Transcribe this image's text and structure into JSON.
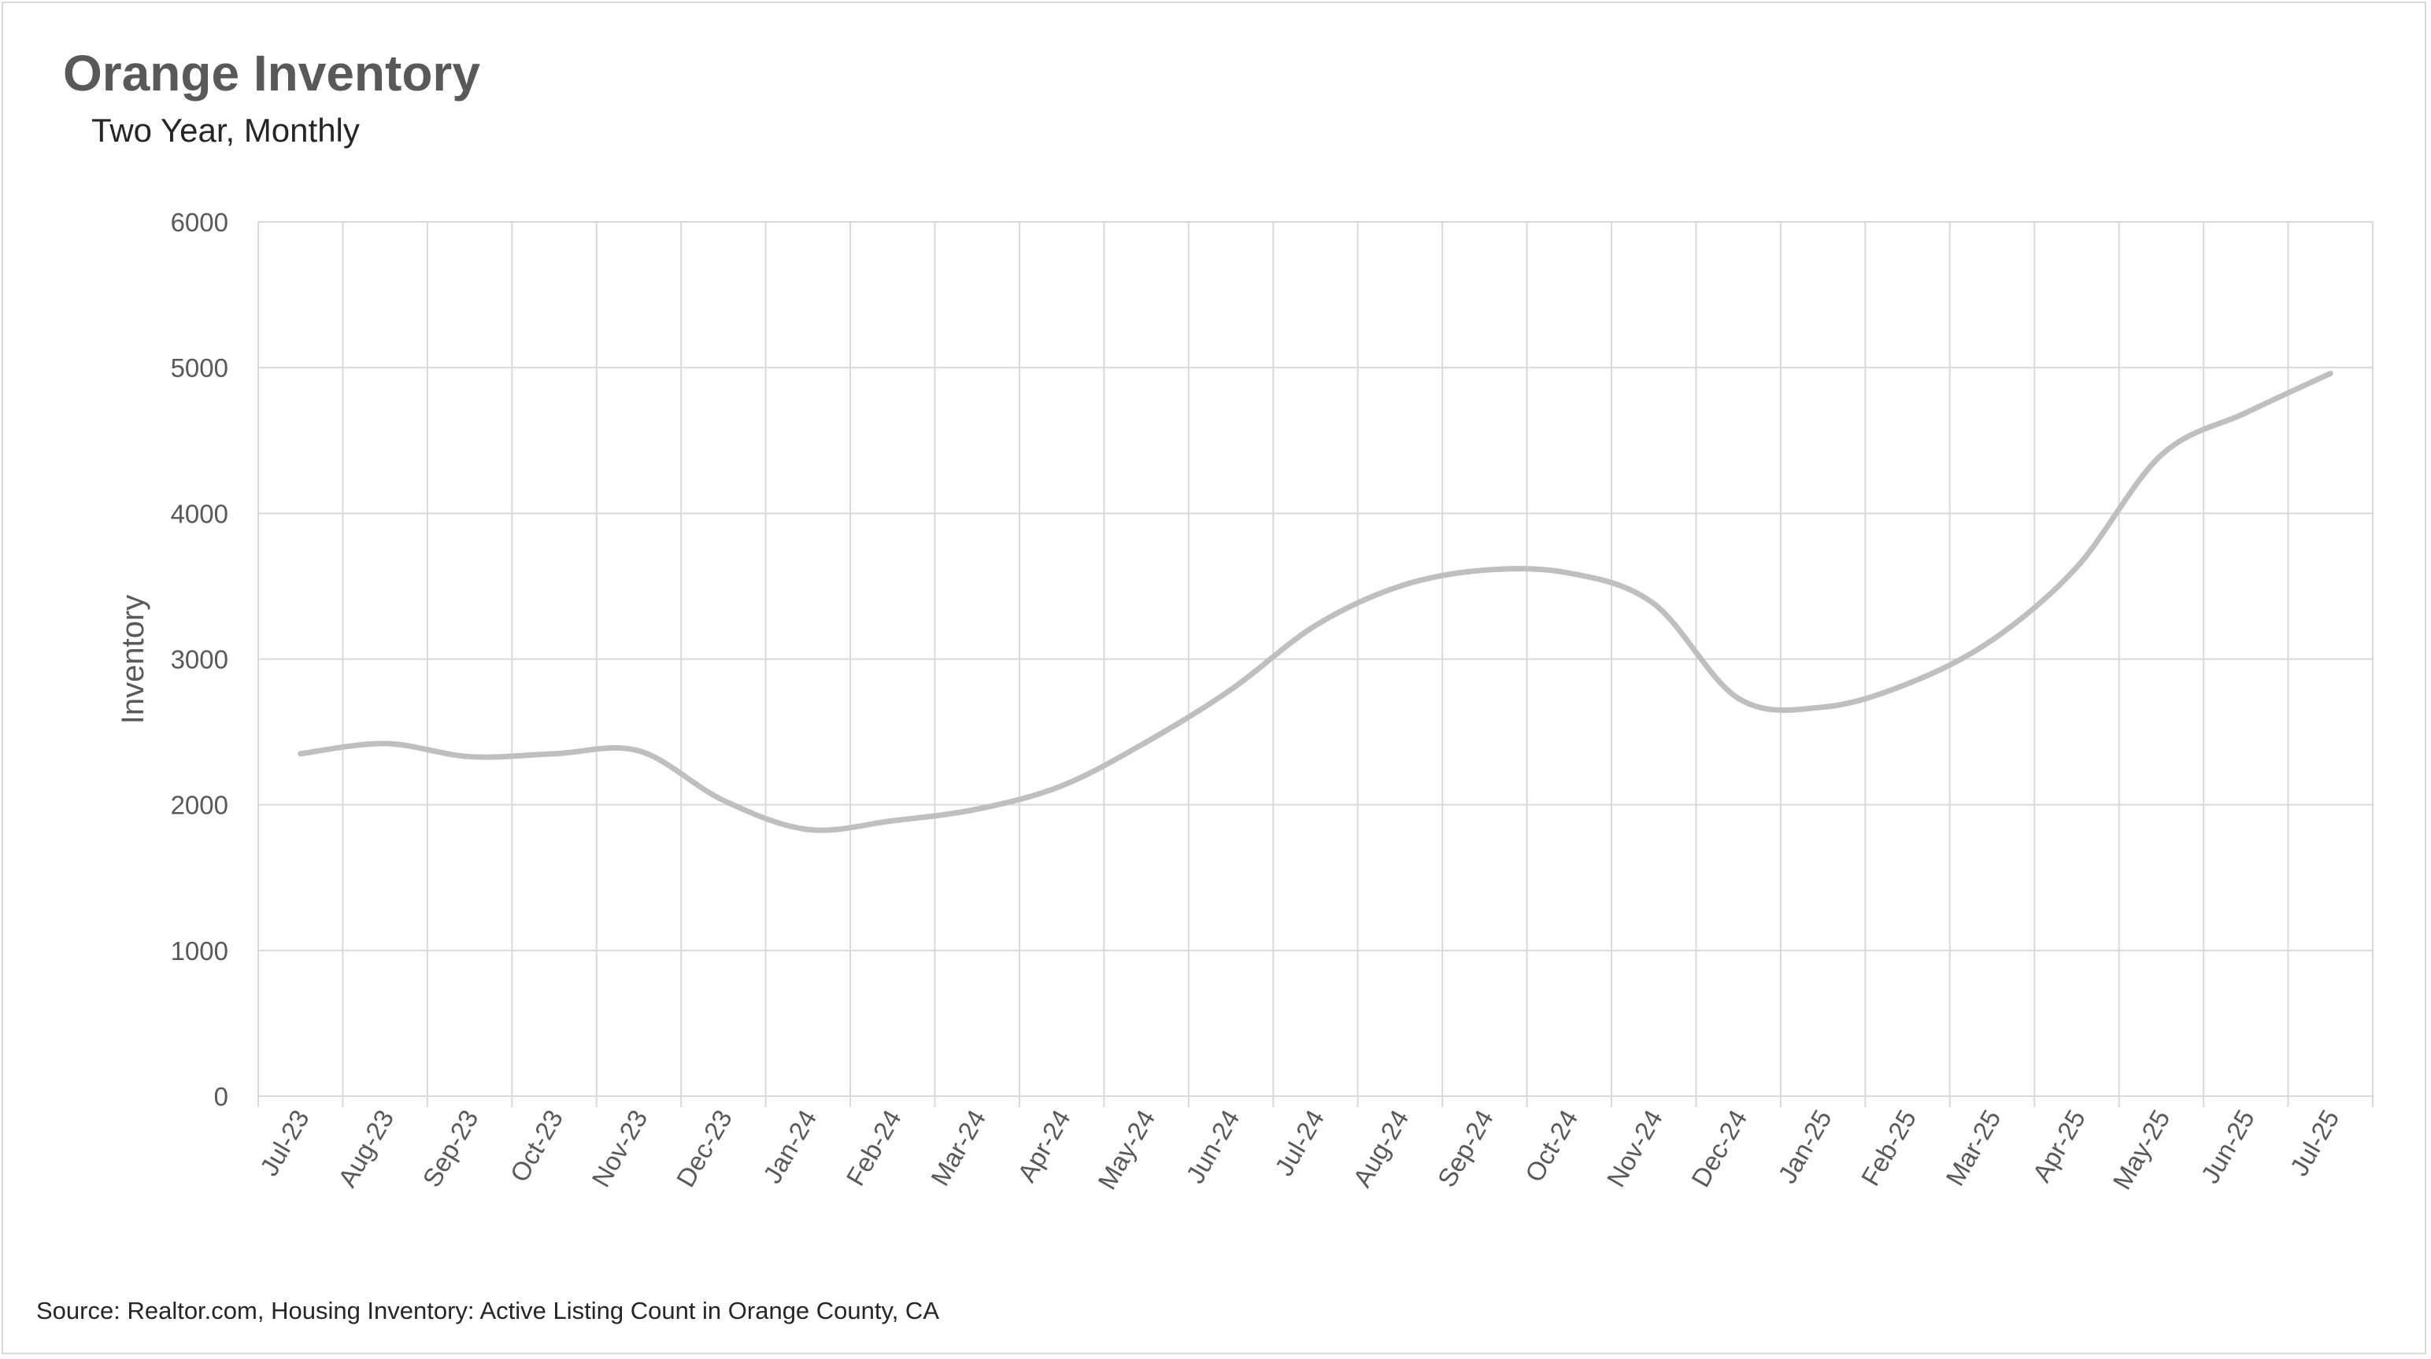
{
  "chart_data": {
    "type": "line",
    "title": "Orange Inventory",
    "subtitle": "Two Year, Monthly",
    "source": "Source: Realtor.com, Housing Inventory: Active Listing Count in Orange County, CA",
    "xlabel": "",
    "ylabel": "Inventory",
    "ylim": [
      0,
      6000
    ],
    "yticks": [
      0,
      1000,
      2000,
      3000,
      4000,
      5000,
      6000
    ],
    "grid": true,
    "legend": "none",
    "categories": [
      "Jul-23",
      "Aug-23",
      "Sep-23",
      "Oct-23",
      "Nov-23",
      "Dec-23",
      "Jan-24",
      "Feb-24",
      "Mar-24",
      "Apr-24",
      "May-24",
      "Jun-24",
      "Jul-24",
      "Aug-24",
      "Sep-24",
      "Oct-24",
      "Nov-24",
      "Dec-24",
      "Jan-25",
      "Feb-25",
      "Mar-25",
      "Apr-25",
      "May-25",
      "Jun-25",
      "Jul-25"
    ],
    "series": [
      {
        "name": "",
        "color": "#bfbfbf",
        "values": [
          2350,
          2420,
          2330,
          2350,
          2370,
          2030,
          1830,
          1890,
          1970,
          2130,
          2430,
          2790,
          3230,
          3500,
          3610,
          3590,
          3380,
          2730,
          2670,
          2830,
          3130,
          3630,
          4400,
          4690,
          4960
        ]
      }
    ]
  }
}
